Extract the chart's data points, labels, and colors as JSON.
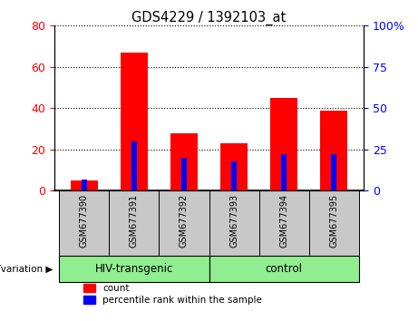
{
  "title": "GDS4229 / 1392103_at",
  "samples": [
    "GSM677390",
    "GSM677391",
    "GSM677392",
    "GSM677393",
    "GSM677394",
    "GSM677395"
  ],
  "count_values": [
    5,
    67,
    28,
    23,
    45,
    39
  ],
  "percentile_values": [
    7,
    30,
    20,
    18,
    22,
    22
  ],
  "left_ylim": [
    0,
    80
  ],
  "right_ylim": [
    0,
    100
  ],
  "left_yticks": [
    0,
    20,
    40,
    60,
    80
  ],
  "right_yticks": [
    0,
    25,
    50,
    75,
    100
  ],
  "right_yticklabels": [
    "0",
    "25",
    "50",
    "75",
    "100%"
  ],
  "bar_color_red": "#ff0000",
  "bar_color_blue": "#0000ff",
  "group_color": "#90ee90",
  "tick_area_color": "#c8c8c8",
  "legend_count": "count",
  "legend_percentile": "percentile rank within the sample",
  "genotype_label": "genotype/variation",
  "figsize": [
    4.61,
    3.54
  ],
  "dpi": 100
}
